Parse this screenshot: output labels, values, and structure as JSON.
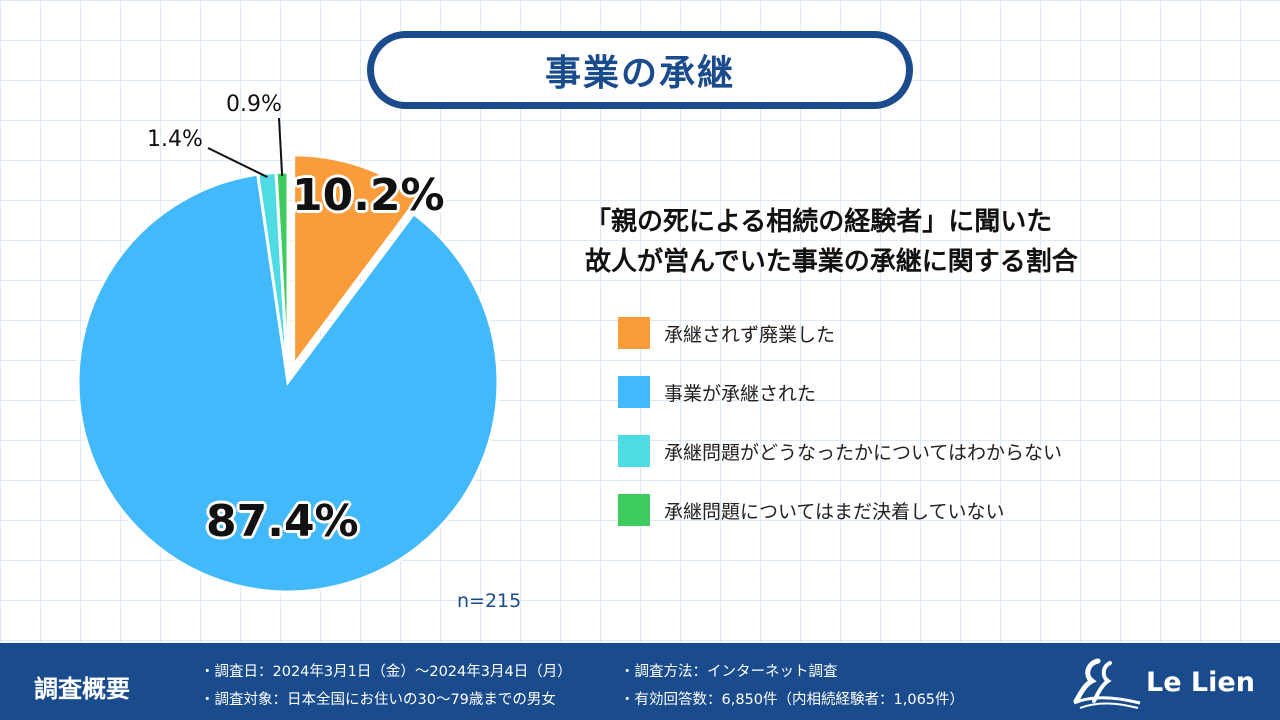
{
  "header": {
    "title": "事業の承継"
  },
  "chart_data": {
    "type": "pie",
    "subtitle_lines": [
      "「親の死による相続の経験者」に聞いた",
      "故人が営んでいた事業の承継に関する割合"
    ],
    "slices": [
      {
        "label": "承継されず廃業した",
        "value": 10.2,
        "display": "10.2%",
        "color": "#fb9c3a",
        "exploded": true
      },
      {
        "label": "事業が承継された",
        "value": 87.4,
        "display": "87.4%",
        "color": "#42b9fb",
        "exploded": false
      },
      {
        "label": "承継問題がどうなったかについてはわからない",
        "value": 1.4,
        "display": "1.4%",
        "color": "#4fdbe3",
        "exploded": false
      },
      {
        "label": "承継問題についてはまだ決着していない",
        "value": 0.9,
        "display": "0.9%",
        "color": "#3fcc5f",
        "exploded": false
      }
    ],
    "sample": "n=215",
    "legend_position": "right"
  },
  "footer": {
    "heading": "調査概要",
    "notes": [
      "・調査日：2024年3月1日（金）～2024年3月4日（月）",
      "・調査対象：日本全国にお住いの30～79歳までの男女",
      "・調査方法：インターネット調査",
      "・有効回答数：6,850件（内相続経験者：1,065件）"
    ],
    "logo_text": "Le Lien"
  }
}
